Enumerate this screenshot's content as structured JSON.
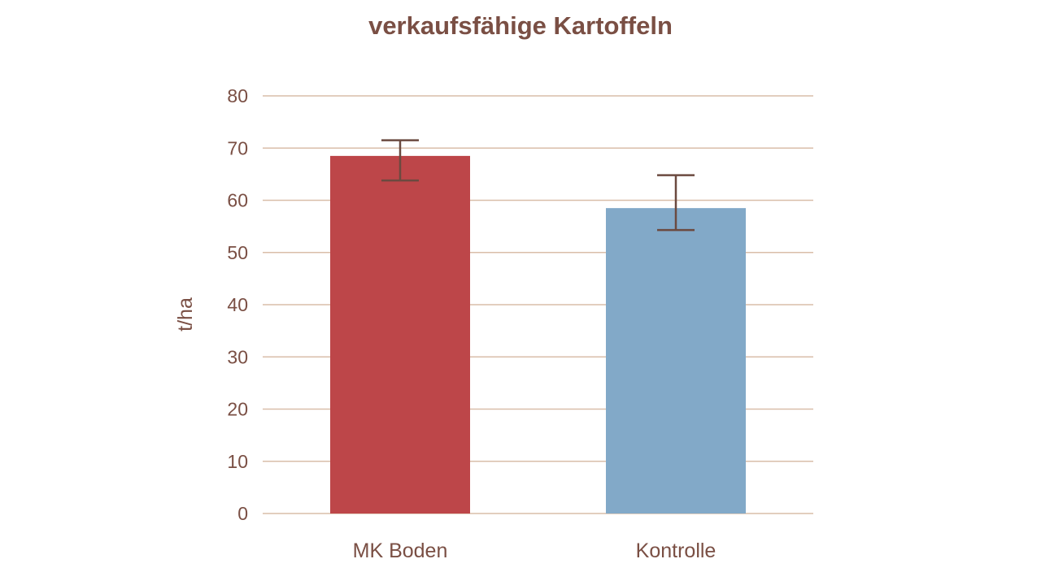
{
  "chart_data": {
    "type": "bar",
    "title": "verkaufsfähige Kartoffeln",
    "ylabel": "t/ha",
    "xlabel": "",
    "categories": [
      "MK Boden",
      "Kontrolle"
    ],
    "values": [
      68.5,
      58.5
    ],
    "error_low": [
      63.8,
      54.3
    ],
    "error_high": [
      71.5,
      64.8
    ],
    "bar_colors": [
      "#bd4649",
      "#82a9c8"
    ],
    "ylim": [
      0,
      80
    ],
    "yticks": [
      0,
      10,
      20,
      30,
      40,
      50,
      60,
      70,
      80
    ],
    "grid": true
  },
  "colors": {
    "text": "#7a4f44",
    "grid": "#d9bea9",
    "error_bar": "#6b4a40"
  }
}
